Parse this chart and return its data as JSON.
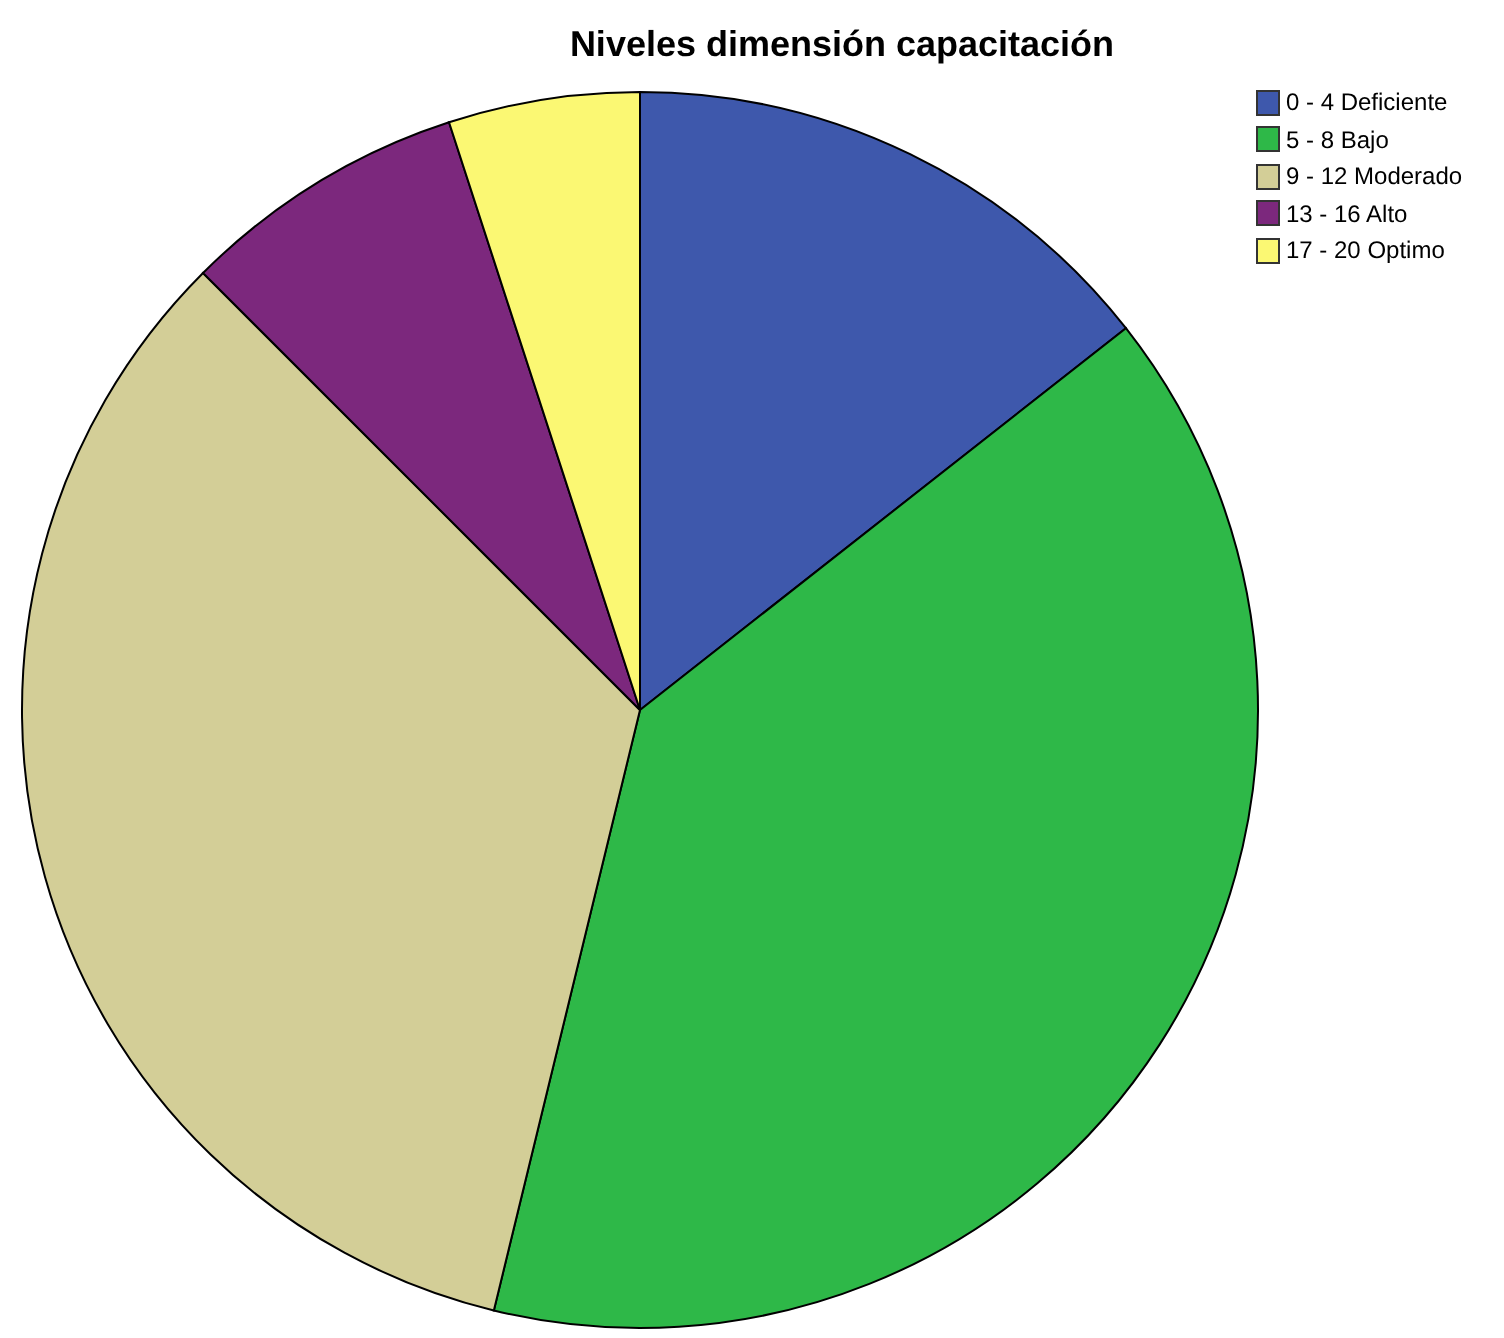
{
  "chart_data": {
    "type": "pie",
    "title": "Niveles dimensión capacitación",
    "categories": [
      "0 - 4 Deficiente",
      "5 - 8 Bajo",
      "9 - 12 Moderado",
      "13 - 16 Alto",
      "17 - 20 Optimo"
    ],
    "values": [
      14.4,
      39.4,
      33.7,
      7.5,
      5.0
    ],
    "colors": [
      "#3e58ac",
      "#2eb848",
      "#d3ce97",
      "#7c287d",
      "#fbf873"
    ],
    "legend": "top right"
  }
}
